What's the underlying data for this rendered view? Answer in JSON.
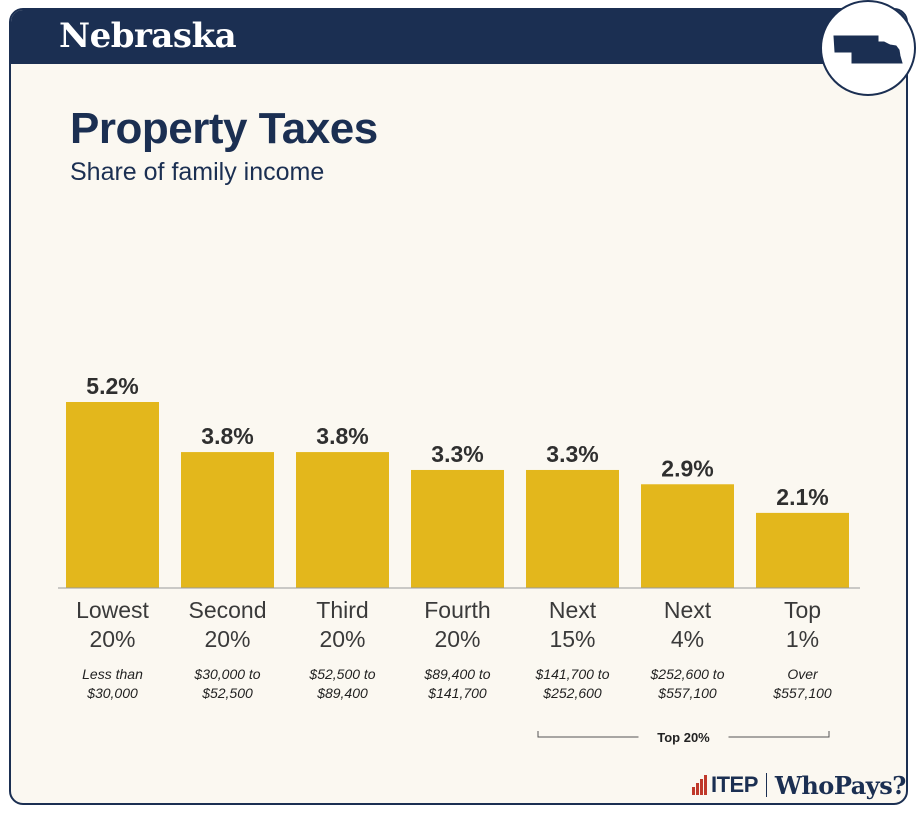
{
  "header": {
    "state": "Nebraska",
    "state_icon": "nebraska-state-outline-icon"
  },
  "chart_data": {
    "type": "bar",
    "title": "Property Taxes",
    "subtitle": "Share of family income",
    "categories": [
      {
        "group": "Lowest",
        "share": "20%",
        "range_line1": "Less than",
        "range_line2": "$30,000"
      },
      {
        "group": "Second",
        "share": "20%",
        "range_line1": "$30,000 to",
        "range_line2": "$52,500"
      },
      {
        "group": "Third",
        "share": "20%",
        "range_line1": "$52,500 to",
        "range_line2": "$89,400"
      },
      {
        "group": "Fourth",
        "share": "20%",
        "range_line1": "$89,400 to",
        "range_line2": "$141,700"
      },
      {
        "group": "Next",
        "share": "15%",
        "range_line1": "$141,700 to",
        "range_line2": "$252,600"
      },
      {
        "group": "Next",
        "share": "4%",
        "range_line1": "$252,600 to",
        "range_line2": "$557,100"
      },
      {
        "group": "Top",
        "share": "1%",
        "range_line1": "Over",
        "range_line2": "$557,100"
      }
    ],
    "values": [
      5.2,
      3.8,
      3.8,
      3.3,
      3.3,
      2.9,
      2.1
    ],
    "value_labels": [
      "5.2%",
      "3.8%",
      "3.8%",
      "3.3%",
      "3.3%",
      "2.9%",
      "2.1%"
    ],
    "unit": "%",
    "ylim": [
      0,
      5.2
    ],
    "grid": false,
    "bar_color": "#e3b71c",
    "bracket": {
      "label": "Top 20%",
      "from_index": 4,
      "to_index": 6
    }
  },
  "footer": {
    "org": "ITEP",
    "product": "WhoPays?"
  },
  "colors": {
    "navy": "#1b2f52",
    "background": "#fbf8f1",
    "bar": "#e3b71c",
    "accent_red": "#c0392b"
  }
}
